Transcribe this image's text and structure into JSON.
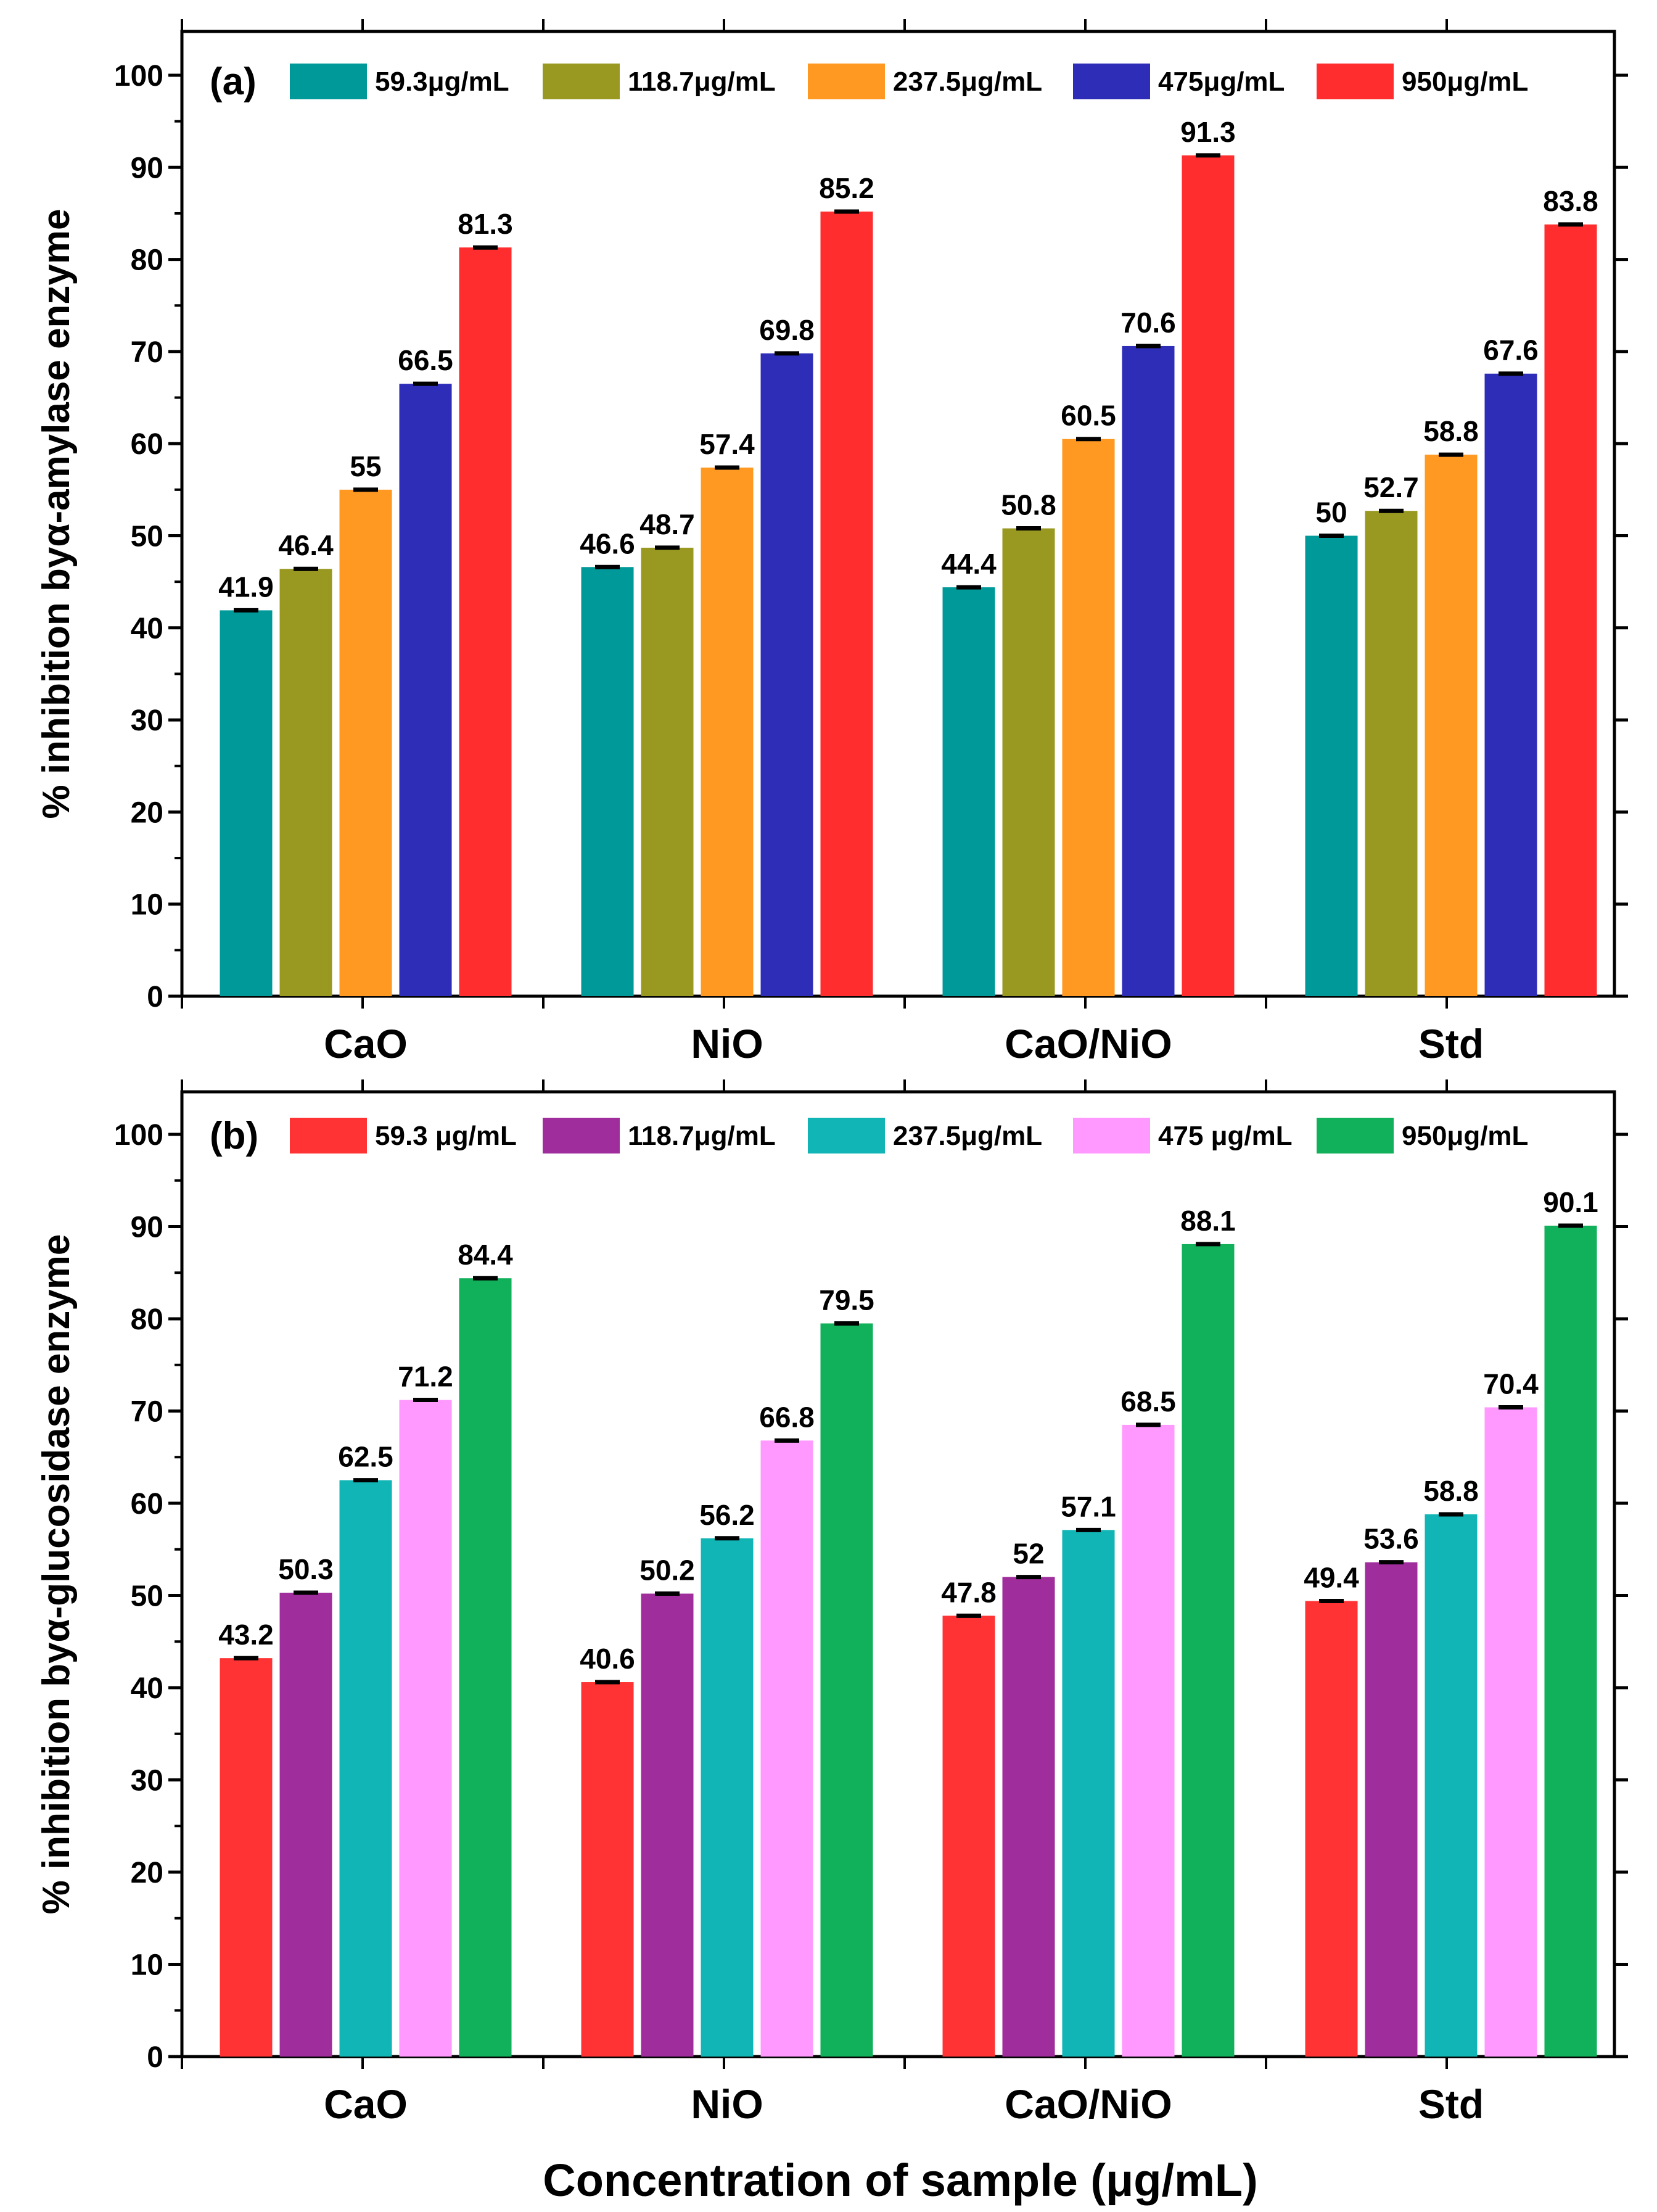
{
  "chart_data": [
    {
      "type": "bar",
      "panel_label": "(a)",
      "ylabel": "% inhibition byα-amylase enzyme",
      "xlabel": "",
      "ylim": [
        0,
        100
      ],
      "yticks": [
        0,
        10,
        20,
        30,
        40,
        50,
        60,
        70,
        80,
        90,
        100
      ],
      "categories": [
        "CaO",
        "NiO",
        "CaO/NiO",
        "Std"
      ],
      "legend_placement": "top",
      "series": [
        {
          "name": "59.3μg/mL",
          "color": "#009999",
          "values": [
            41.9,
            46.6,
            44.4,
            50
          ],
          "labels": [
            "41.9",
            "46.6",
            "44.4",
            "50"
          ]
        },
        {
          "name": "118.7μg/mL",
          "color": "#999922",
          "values": [
            46.4,
            48.7,
            50.8,
            52.7
          ],
          "labels": [
            "46.4",
            "48.7",
            "50.8",
            "52.7"
          ]
        },
        {
          "name": "237.5μg/mL",
          "color": "#ff9922",
          "values": [
            55,
            57.4,
            60.5,
            58.8
          ],
          "labels": [
            "55",
            "57.4",
            "60.5",
            "58.8"
          ]
        },
        {
          "name": "475μg/mL",
          "color": "#2d2db8",
          "values": [
            66.5,
            69.8,
            70.6,
            67.6
          ],
          "labels": [
            "66.5",
            "69.8",
            "70.6",
            "67.6"
          ]
        },
        {
          "name": "950μg/mL",
          "color": "#ff2d2d",
          "values": [
            81.3,
            85.2,
            91.3,
            83.8
          ],
          "labels": [
            "81.3",
            "85.2",
            "91.3",
            "83.8"
          ]
        }
      ]
    },
    {
      "type": "bar",
      "panel_label": "(b)",
      "ylabel": "% inhibition byα-glucosidase enzyme",
      "xlabel": "Concentration of sample (μg/mL)",
      "ylim": [
        0,
        100
      ],
      "yticks": [
        0,
        10,
        20,
        30,
        40,
        50,
        60,
        70,
        80,
        90,
        100
      ],
      "categories": [
        "CaO",
        "NiO",
        "CaO/NiO",
        "Std"
      ],
      "legend_placement": "top",
      "series": [
        {
          "name": "59.3 μg/mL",
          "color": "#ff3333",
          "values": [
            43.2,
            40.6,
            47.8,
            49.4
          ],
          "labels": [
            "43.2",
            "40.6",
            "47.8",
            "49.4"
          ]
        },
        {
          "name": "118.7μg/mL",
          "color": "#a02d9c",
          "values": [
            50.3,
            50.2,
            52,
            53.6
          ],
          "labels": [
            "50.3",
            "50.2",
            "52",
            "53.6"
          ]
        },
        {
          "name": "237.5μg/mL",
          "color": "#11b5b5",
          "values": [
            62.5,
            56.2,
            57.1,
            58.8
          ],
          "labels": [
            "62.5",
            "56.2",
            "57.1",
            "58.8"
          ]
        },
        {
          "name": "475 μg/mL",
          "color": "#ff99ff",
          "values": [
            71.2,
            66.8,
            68.5,
            70.4
          ],
          "labels": [
            "71.2",
            "66.8",
            "68.5",
            "70.4"
          ]
        },
        {
          "name": "950μg/mL",
          "color": "#11b05a",
          "values": [
            84.4,
            79.5,
            88.1,
            90.1
          ],
          "labels": [
            "84.4",
            "79.5",
            "88.1",
            "90.1"
          ]
        }
      ]
    }
  ]
}
